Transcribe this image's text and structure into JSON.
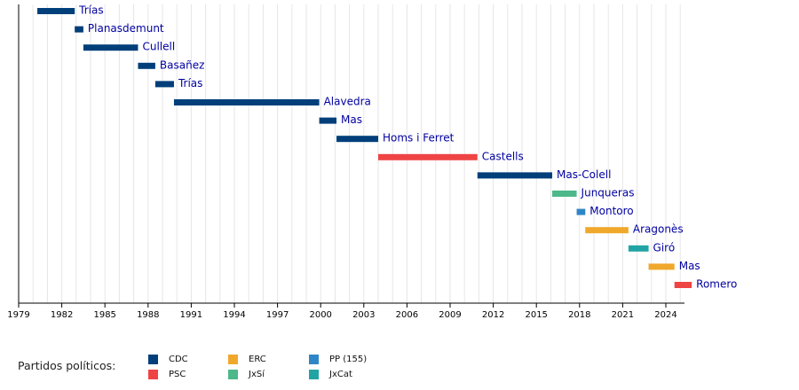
{
  "chart_data": {
    "type": "timeline",
    "x_ticks": [
      "1979",
      "1982",
      "1985",
      "1988",
      "1991",
      "1994",
      "1997",
      "2000",
      "2003",
      "2006",
      "2009",
      "2012",
      "2015",
      "2018",
      "2021",
      "2024"
    ],
    "xlim": [
      1979.0,
      2025.8
    ],
    "colors": {
      "CDC": "#003f7a",
      "PSC": "#ef4444",
      "ERC": "#f0a82c",
      "JxSí": "#4db88a",
      "PP (155)": "#2f86c7",
      "JxCat": "#22a4a4",
      "label": "#0000a0",
      "grid": "#e6e6e6"
    },
    "bars": [
      {
        "label": "Trías",
        "party": "CDC",
        "start": 1980.3,
        "end": 1982.9
      },
      {
        "label": "Planasdemunt",
        "party": "CDC",
        "start": 1982.9,
        "end": 1983.5
      },
      {
        "label": "Cullell",
        "party": "CDC",
        "start": 1983.5,
        "end": 1987.3
      },
      {
        "label": "Basañez",
        "party": "CDC",
        "start": 1987.3,
        "end": 1988.5
      },
      {
        "label": "Trías",
        "party": "CDC",
        "start": 1988.5,
        "end": 1989.8
      },
      {
        "label": "Alavedra",
        "party": "CDC",
        "start": 1989.8,
        "end": 1999.9
      },
      {
        "label": "Mas",
        "party": "CDC",
        "start": 1999.9,
        "end": 2001.1
      },
      {
        "label": "Homs i Ferret",
        "party": "CDC",
        "start": 2001.1,
        "end": 2004.0
      },
      {
        "label": "Castells",
        "party": "PSC",
        "start": 2004.0,
        "end": 2010.9
      },
      {
        "label": "Mas-Colell",
        "party": "CDC",
        "start": 2010.9,
        "end": 2016.1
      },
      {
        "label": "Junqueras",
        "party": "JxSí",
        "start": 2016.1,
        "end": 2017.8
      },
      {
        "label": "Montoro",
        "party": "PP (155)",
        "start": 2017.8,
        "end": 2018.4
      },
      {
        "label": "Aragonès",
        "party": "ERC",
        "start": 2018.4,
        "end": 2021.4
      },
      {
        "label": "Giró",
        "party": "JxCat",
        "start": 2021.4,
        "end": 2022.8
      },
      {
        "label": "Mas",
        "party": "ERC",
        "start": 2022.8,
        "end": 2024.6
      },
      {
        "label": "Romero",
        "party": "PSC",
        "start": 2024.6,
        "end": 2025.8
      }
    ]
  },
  "legend": {
    "title": "Partidos políticos:",
    "items": [
      {
        "label": "CDC",
        "party": "CDC"
      },
      {
        "label": "PSC",
        "party": "PSC"
      },
      {
        "label": "ERC",
        "party": "ERC"
      },
      {
        "label": "JxSí",
        "party": "JxSí"
      },
      {
        "label": "PP (155)",
        "party": "PP (155)"
      },
      {
        "label": "JxCat",
        "party": "JxCat"
      }
    ]
  }
}
